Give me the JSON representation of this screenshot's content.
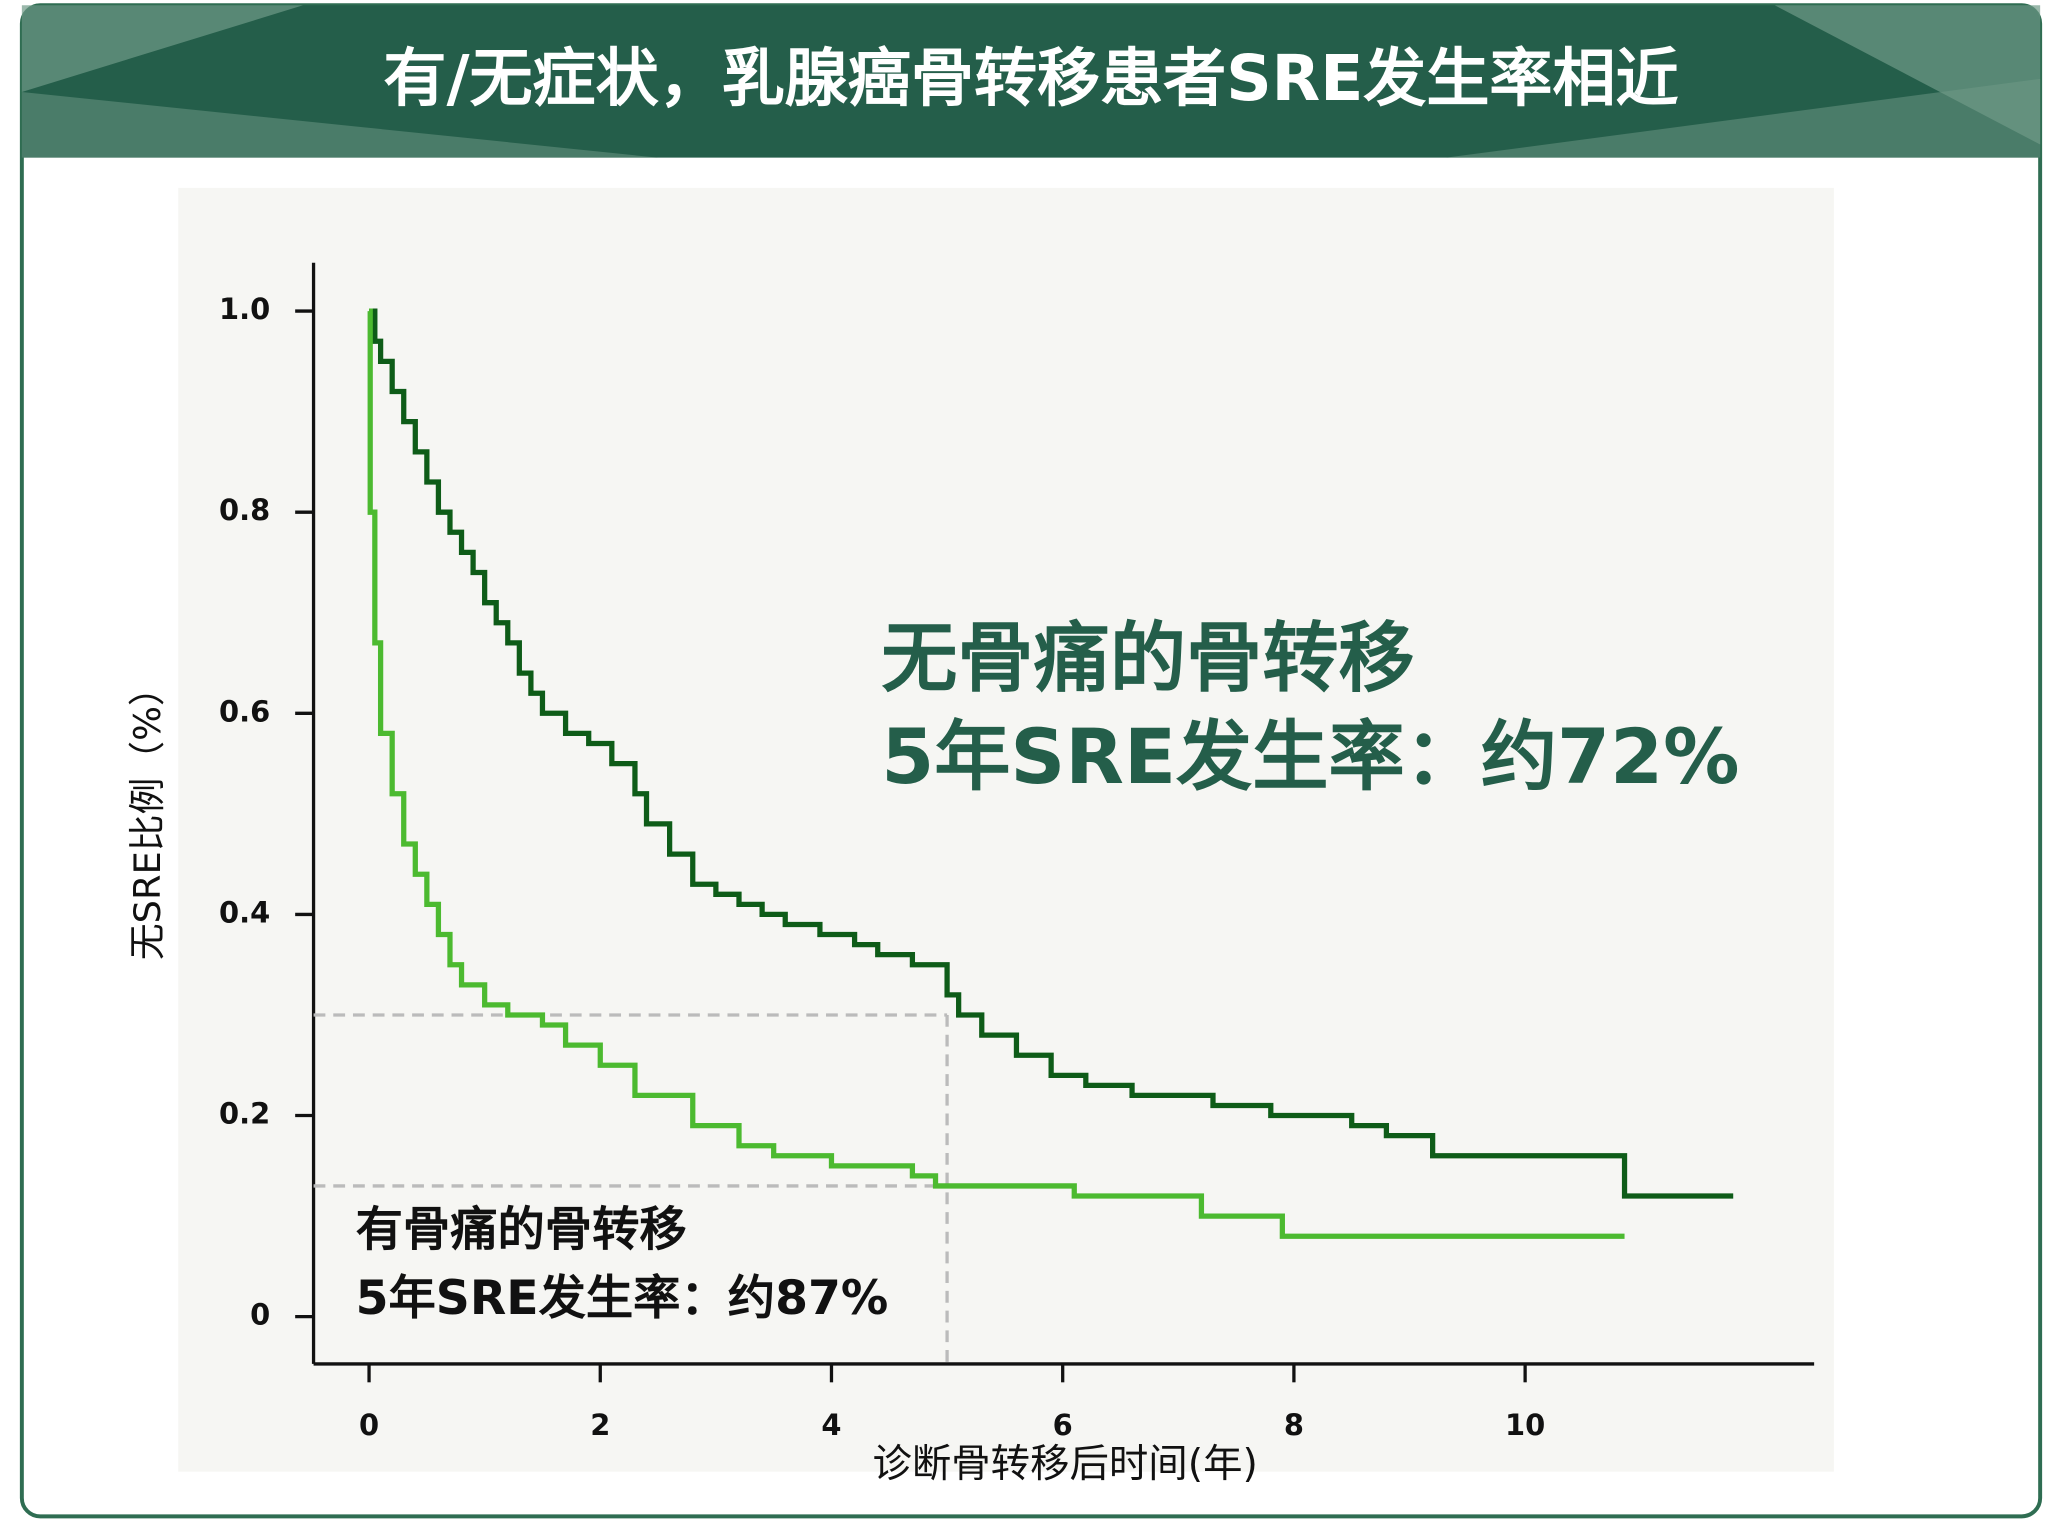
{
  "chart_data": {
    "type": "step",
    "title": "有/无症状，乳腺癌骨转移患者SRE发生率相近",
    "y_label": "无SRE比例（%）",
    "x_label": "诊断骨转移后时间(年)",
    "xlim": [
      -0.48,
      12.5
    ],
    "xticks": [
      0,
      2,
      4,
      6,
      8,
      10
    ],
    "ylim": [
      -0.047,
      1.048
    ],
    "yticks": [
      0,
      0.2,
      0.4,
      0.6,
      0.8,
      {
        "value": 1,
        "label": "1.0"
      }
    ],
    "series": [
      {
        "color": "#0e5c18",
        "x": [
          0,
          0.05,
          0.1,
          0.2,
          0.3,
          0.4,
          0.5,
          0.6,
          0.7,
          0.8,
          0.9,
          1.0,
          1.1,
          1.2,
          1.3,
          1.4,
          1.5,
          1.7,
          1.9,
          2.1,
          2.3,
          2.4,
          2.6,
          2.8,
          3.0,
          3.2,
          3.4,
          3.6,
          3.9,
          4.2,
          4.4,
          4.7,
          5.0,
          5.1,
          5.3,
          5.6,
          5.9,
          6.2,
          6.6,
          7.3,
          7.8,
          8.5,
          8.8,
          9.2,
          10.86,
          11.8
        ],
        "values": [
          1.0,
          0.97,
          0.95,
          0.92,
          0.89,
          0.86,
          0.83,
          0.8,
          0.78,
          0.76,
          0.74,
          0.71,
          0.69,
          0.67,
          0.64,
          0.62,
          0.6,
          0.58,
          0.57,
          0.55,
          0.52,
          0.49,
          0.46,
          0.43,
          0.42,
          0.41,
          0.4,
          0.39,
          0.38,
          0.37,
          0.36,
          0.35,
          0.32,
          0.3,
          0.28,
          0.26,
          0.24,
          0.23,
          0.22,
          0.21,
          0.2,
          0.19,
          0.18,
          0.16,
          0.12,
          0.12
        ]
      },
      {
        "color": "#4cba30",
        "x": [
          0,
          0.01,
          0.05,
          0.1,
          0.2,
          0.3,
          0.4,
          0.5,
          0.6,
          0.7,
          0.8,
          1.0,
          1.2,
          1.5,
          1.7,
          2.0,
          2.3,
          2.8,
          3.2,
          3.5,
          4.0,
          4.7,
          4.9,
          6.1,
          7.2,
          7.9,
          10.86
        ],
        "values": [
          1.0,
          0.8,
          0.67,
          0.58,
          0.52,
          0.47,
          0.44,
          0.41,
          0.38,
          0.35,
          0.33,
          0.31,
          0.3,
          0.29,
          0.27,
          0.25,
          0.22,
          0.19,
          0.17,
          0.16,
          0.15,
          0.14,
          0.13,
          0.12,
          0.1,
          0.08,
          0.08
        ]
      }
    ],
    "reference": {
      "x": 5,
      "y": [
        0.3,
        0.13
      ]
    },
    "annotations": [
      {
        "lines": [
          "无骨痛的骨转移",
          "5年SRE发生率：约72%"
        ]
      },
      {
        "lines": [
          "有骨痛的骨转移",
          "5年SRE发生率：约87%"
        ]
      }
    ]
  }
}
